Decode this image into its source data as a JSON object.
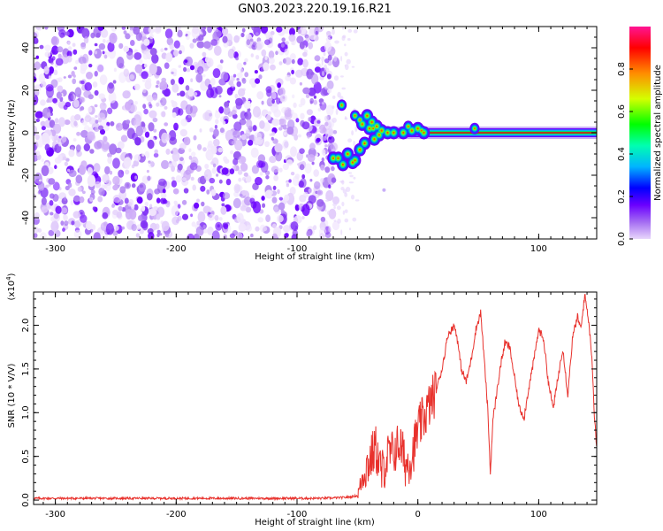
{
  "title": "GN03.2023.220.19.16.R21",
  "chart_data": [
    {
      "type": "heatmap",
      "xlabel": "Height of straight line (km)",
      "ylabel": "Frequency (Hz)",
      "xlim": [
        -318,
        148
      ],
      "ylim": [
        -50,
        50
      ],
      "xticks": [
        -300,
        -200,
        -100,
        0,
        100
      ],
      "yticks": [
        -40,
        -20,
        0,
        20,
        40
      ],
      "colorbar": {
        "label": "Normalized spectral amplitude",
        "range": [
          0.0,
          1.0
        ],
        "ticks": [
          0.0,
          0.2,
          0.4,
          0.6,
          0.8
        ],
        "colors": [
          "#e8d6fb",
          "#a46cf2",
          "#6a00ff",
          "#0000ff",
          "#00b4ff",
          "#00ffb0",
          "#00ff00",
          "#d4ff00",
          "#ff8c00",
          "#ff0000",
          "#ff1493"
        ]
      },
      "noise_region": {
        "x_from": -318,
        "x_to": -72,
        "level": 0.25
      },
      "signal_track": [
        [
          -70,
          -12
        ],
        [
          -66,
          -12
        ],
        [
          -62,
          -15
        ],
        [
          -58,
          -10
        ],
        [
          -54,
          -14
        ],
        [
          -52,
          -13
        ],
        [
          -48,
          -8
        ],
        [
          -46,
          4
        ],
        [
          -44,
          -5
        ],
        [
          -42,
          8
        ],
        [
          -40,
          2
        ],
        [
          -38,
          5
        ],
        [
          -36,
          -3
        ],
        [
          -34,
          3
        ],
        [
          -32,
          -1
        ],
        [
          -30,
          1
        ],
        [
          -25,
          0
        ],
        [
          -20,
          0
        ],
        [
          -12,
          0
        ],
        [
          -5,
          1
        ],
        [
          0,
          2
        ],
        [
          5,
          0
        ],
        [
          20,
          0
        ],
        [
          50,
          0
        ],
        [
          100,
          0
        ],
        [
          148,
          0
        ]
      ],
      "blobs": [
        [
          -63,
          13
        ],
        [
          -52,
          8
        ],
        [
          -48,
          6
        ],
        [
          -37,
          2
        ],
        [
          -8,
          3
        ],
        [
          3,
          1
        ],
        [
          47,
          2
        ]
      ],
      "grid": false
    },
    {
      "type": "line",
      "xlabel": "Height of straight line (km)",
      "ylabel": "SNR (10 * V/V)",
      "y_multiplier": "(x10",
      "y_multiplier_exp": "4",
      "y_multiplier_close": ")",
      "xlim": [
        -318,
        148
      ],
      "ylim": [
        -0.05,
        2.38
      ],
      "xticks": [
        -300,
        -200,
        -100,
        0,
        100
      ],
      "yticks": [
        0.0,
        0.5,
        1.0,
        1.5,
        2.0
      ],
      "ytick_labels": [
        "0.0",
        "0.5",
        "1.0",
        "1.5",
        "2.0"
      ],
      "color": "#e8312c",
      "series": [
        {
          "x": [
            -318,
            -300,
            -250,
            -200,
            -150,
            -100,
            -80,
            -60,
            -50,
            -45,
            -40,
            -35,
            -30,
            -25,
            -20,
            -15,
            -10,
            -5,
            0,
            5,
            10,
            15,
            20,
            25,
            28,
            30,
            32,
            36,
            40,
            44,
            48,
            52,
            56,
            58,
            60,
            62,
            64,
            68,
            72,
            76,
            80,
            84,
            88,
            92,
            96,
            100,
            104,
            108,
            112,
            116,
            120,
            124,
            128,
            132,
            135,
            138,
            141,
            144,
            146,
            148
          ],
          "y": [
            0.02,
            0.02,
            0.02,
            0.02,
            0.02,
            0.02,
            0.02,
            0.03,
            0.05,
            0.3,
            0.45,
            0.6,
            0.3,
            0.5,
            0.55,
            0.65,
            0.4,
            0.5,
            0.8,
            0.95,
            1.1,
            1.25,
            1.5,
            1.9,
            1.95,
            2.0,
            1.9,
            1.5,
            1.35,
            1.6,
            1.95,
            2.15,
            1.4,
            1.0,
            0.3,
            0.9,
            1.1,
            1.5,
            1.8,
            1.75,
            1.4,
            1.05,
            0.95,
            1.3,
            1.6,
            1.95,
            1.85,
            1.35,
            1.05,
            1.4,
            1.75,
            1.2,
            1.85,
            2.1,
            1.95,
            2.35,
            2.1,
            1.65,
            1.0,
            0.6
          ]
        }
      ],
      "grid": false
    }
  ]
}
